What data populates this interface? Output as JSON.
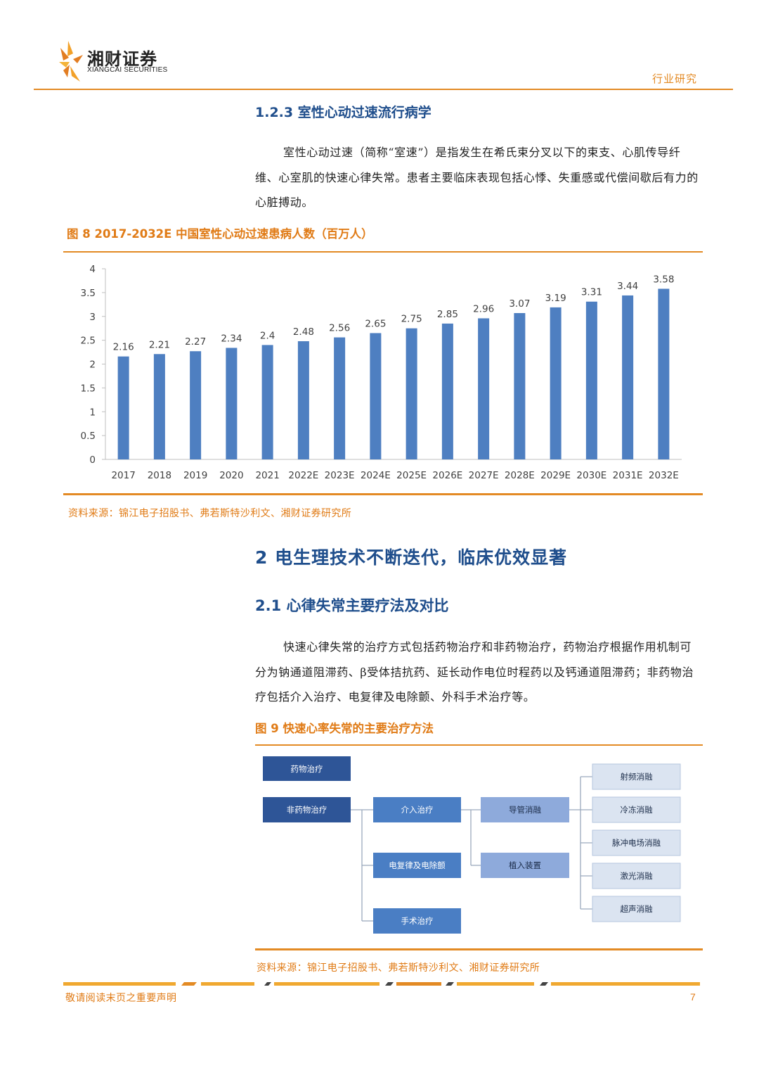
{
  "header": {
    "logo_cn": "湘财证券",
    "logo_en": "XIANGCAI SECURITIES",
    "tag": "行业研究",
    "brand_color": "#e38a24"
  },
  "section_123": {
    "title": "1.2.3 室性心动过速流行病学",
    "paragraph": "室性心动过速（简称“室速”）是指发生在希氏束分叉以下的束支、心肌传导纤维、心室肌的快速心律失常。患者主要临床表现包括心悸、失重感或代偿间歇后有力的心脏搏动。"
  },
  "figure8": {
    "title": "图 8 2017-2032E 中国室性心动过速患病人数（百万人）",
    "source": "资料来源：锦江电子招股书、弗若斯特沙利文、湘财证券研究所"
  },
  "chart_data": {
    "type": "bar",
    "title": "",
    "xlabel": "",
    "ylabel": "",
    "categories": [
      "2017",
      "2018",
      "2019",
      "2020",
      "2021",
      "2022E",
      "2023E",
      "2024E",
      "2025E",
      "2026E",
      "2027E",
      "2028E",
      "2029E",
      "2030E",
      "2031E",
      "2032E"
    ],
    "values": [
      2.16,
      2.21,
      2.27,
      2.34,
      2.4,
      2.48,
      2.56,
      2.65,
      2.75,
      2.85,
      2.96,
      3.07,
      3.19,
      3.31,
      3.44,
      3.58
    ],
    "value_labels": [
      "2.16",
      "2.21",
      "2.27",
      "2.34",
      "2.4",
      "2.48",
      "2.56",
      "2.65",
      "2.75",
      "2.85",
      "2.96",
      "3.07",
      "3.19",
      "3.31",
      "3.44",
      "3.58"
    ],
    "yticks": [
      "0",
      "0.5",
      "1",
      "1.5",
      "2",
      "2.5",
      "3",
      "3.5",
      "4"
    ],
    "ylim": [
      0,
      4
    ],
    "grid": false,
    "legend": "none",
    "bar_color": "#4e7fc1"
  },
  "section_2": {
    "title": "2 电生理技术不断迭代，临床优效显著"
  },
  "section_21": {
    "title": "2.1 心律失常主要疗法及对比",
    "paragraph": "快速心律失常的治疗方式包括药物治疗和非药物治疗，药物治疗根据作用机制可分为钠通道阻滞药、β受体拮抗药、延长动作电位时程药以及钙通道阻滞药；非药物治疗包括介入治疗、电复律及电除颤、外科手术治疗等。"
  },
  "figure9": {
    "title": "图 9  快速心率失常的主要治疗方法",
    "source": "资料来源：锦江电子招股书、弗若斯特沙利文、湘财证券研究所",
    "nodes": {
      "drug": "药物治疗",
      "nondrug": "非药物治疗",
      "interventional": "介入治疗",
      "cardioversion": "电复律及电除颤",
      "surgery": "手术治疗",
      "catheter_ablation": "导管消融",
      "implant": "植入装置",
      "rf": "射频消融",
      "cryo": "冷冻消融",
      "pfa": "脉冲电场消融",
      "laser": "激光消融",
      "ultrasound": "超声消融"
    },
    "colors": {
      "dark": "#2e5597",
      "mid": "#4a7ec4",
      "light": "#8eaadb",
      "pale": "#dbe4f1"
    }
  },
  "footer": {
    "note": "敬请阅读末页之重要声明",
    "page": "7"
  }
}
